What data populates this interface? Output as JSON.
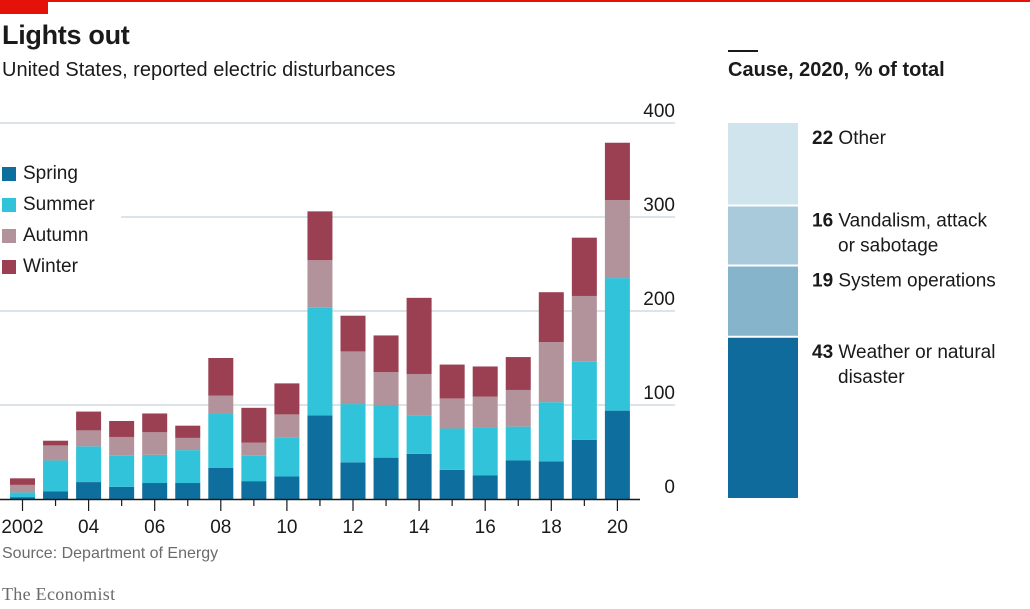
{
  "title": "Lights out",
  "subtitle": "United States, reported electric disturbances",
  "source": "Source: Department of Energy",
  "brand": "The Economist",
  "colors": {
    "accent": "#e3120b",
    "spring": "#0e6e9e",
    "summer": "#31c3d9",
    "autumn": "#b3939b",
    "winter": "#9b3f52",
    "other": "#cfe4ec",
    "vandalism": "#a9cadb",
    "system": "#85b4cb",
    "weather": "#0f6b9b",
    "grid": "#c7d4dc"
  },
  "legend": [
    {
      "label": "Spring",
      "color": "#0e6e9e"
    },
    {
      "label": "Summer",
      "color": "#31c3d9"
    },
    {
      "label": "Autumn",
      "color": "#b3939b"
    },
    {
      "label": "Winter",
      "color": "#9b3f52"
    }
  ],
  "chart_data": [
    {
      "type": "bar",
      "stacked": true,
      "categories": [
        "2002",
        "2003",
        "2004",
        "2005",
        "2006",
        "2007",
        "2008",
        "2009",
        "2010",
        "2011",
        "2012",
        "2013",
        "2014",
        "2015",
        "2016",
        "2017",
        "2018",
        "2019",
        "2020"
      ],
      "x_tick_labels": [
        "2002",
        "04",
        "06",
        "08",
        "10",
        "12",
        "14",
        "16",
        "18",
        "20"
      ],
      "y_tick_labels": [
        "0",
        "100",
        "200",
        "300",
        "400"
      ],
      "ylim": [
        0,
        400
      ],
      "grid": true,
      "series": [
        {
          "name": "Spring",
          "color": "#0e6e9e",
          "values": [
            2,
            8,
            18,
            13,
            17,
            17,
            33,
            19,
            24,
            89,
            39,
            44,
            48,
            31,
            25,
            41,
            40,
            63,
            94
          ]
        },
        {
          "name": "Summer",
          "color": "#31c3d9",
          "values": [
            5,
            33,
            38,
            33,
            30,
            35,
            58,
            27,
            41,
            115,
            62,
            56,
            41,
            44,
            51,
            36,
            63,
            83,
            141
          ]
        },
        {
          "name": "Autumn",
          "color": "#b3939b",
          "values": [
            8,
            16,
            17,
            20,
            24,
            13,
            19,
            14,
            25,
            50,
            56,
            35,
            44,
            32,
            33,
            39,
            64,
            70,
            83
          ]
        },
        {
          "name": "Winter",
          "color": "#9b3f52",
          "values": [
            7,
            5,
            20,
            17,
            20,
            13,
            40,
            37,
            33,
            52,
            38,
            39,
            81,
            36,
            32,
            35,
            53,
            62,
            61
          ]
        }
      ]
    },
    {
      "type": "bar",
      "stacked": true,
      "title": "Cause, 2020, % of total",
      "unit": "% of total",
      "segments": [
        {
          "value": 43,
          "value_label": "43",
          "label_lines": [
            "Weather or natural",
            "disaster"
          ],
          "color": "#0f6b9b"
        },
        {
          "value": 19,
          "value_label": "19",
          "label_lines": [
            "System operations"
          ],
          "color": "#85b4cb"
        },
        {
          "value": 16,
          "value_label": "16",
          "label_lines": [
            "Vandalism, attack",
            "or sabotage"
          ],
          "color": "#a9cadb"
        },
        {
          "value": 22,
          "value_label": "22",
          "label_lines": [
            "Other"
          ],
          "color": "#cfe4ec"
        }
      ]
    }
  ]
}
